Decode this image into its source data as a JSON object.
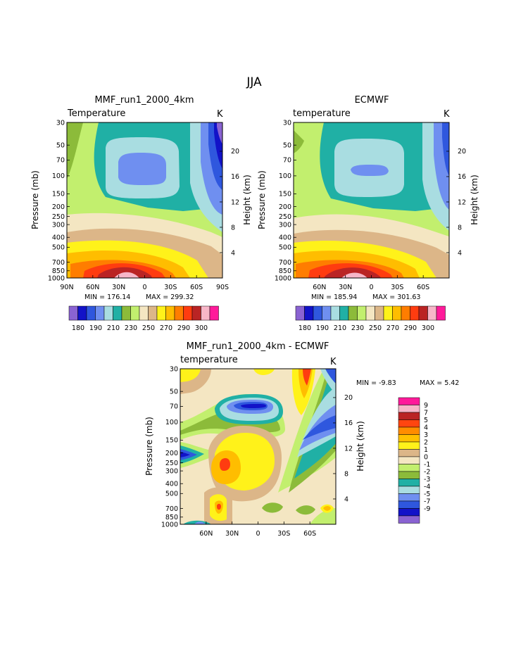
{
  "figure_title": "JJA",
  "panels": [
    {
      "title": "MMF_run1_2000_4km",
      "left_label": "Temperature",
      "unit": "K",
      "min_label": "MIN = 176.14",
      "max_label": "MAX = 299.32",
      "ylabel": "Pressure (mb)",
      "y2label": "Height (km)",
      "xticks": [
        "90N",
        "60N",
        "30N",
        "0",
        "30S",
        "60S",
        "90S"
      ],
      "colorbar_labels": [
        "180",
        "190",
        "210",
        "230",
        "250",
        "270",
        "290",
        "300"
      ]
    },
    {
      "title": "ECMWF",
      "left_label": "temperature",
      "unit": "K",
      "min_label": "MIN = 185.94",
      "max_label": "MAX = 301.63",
      "ylabel": "Pressure (mb)",
      "y2label": "Height (km)",
      "xticks": [
        "60N",
        "30N",
        "0",
        "30S",
        "60S"
      ],
      "colorbar_labels": [
        "180",
        "190",
        "210",
        "230",
        "250",
        "270",
        "290",
        "300"
      ]
    },
    {
      "title": "MMF_run1_2000_4km - ECMWF",
      "left_label": "temperature",
      "unit": "K",
      "min_label": "MIN = -9.83",
      "max_label": "MAX = 5.42",
      "ylabel": "Pressure (mb)",
      "y2label": "Height (km)",
      "xticks": [
        "60N",
        "30N",
        "0",
        "30S",
        "60S"
      ],
      "colorbar_labels": [
        "9",
        "7",
        "5",
        "4",
        "3",
        "2",
        "1",
        "0",
        "-1",
        "-2",
        "-3",
        "-4",
        "-5",
        "-7",
        "-9"
      ]
    }
  ],
  "colors": {
    "abs_scale": [
      "#8a63d2",
      "#1212c8",
      "#2f57de",
      "#6f8ff0",
      "#a9dde1",
      "#20b0a5",
      "#8cbb3a",
      "#c2ef6e",
      "#f4e6c2",
      "#dcb688",
      "#fff21a",
      "#ffbd00",
      "#ff7d00",
      "#ff3c10",
      "#ba2424",
      "#f7b6c8",
      "#ff1a9a"
    ],
    "diff_scale": [
      "#ff1a9a",
      "#f7b6c8",
      "#ba2424",
      "#ff4510",
      "#ff8c00",
      "#ffc000",
      "#fff21a",
      "#dcb688",
      "#f4e6c2",
      "#c2ef6e",
      "#8cbb3a",
      "#20b0a5",
      "#a9dde1",
      "#6f8ff0",
      "#2f57de",
      "#1212c8",
      "#8a63d2"
    ]
  },
  "chart_data": [
    {
      "type": "heatmap",
      "title": "MMF_run1_2000_4km",
      "variable": "Temperature",
      "units": "K",
      "x": "latitude, 90N to 90S",
      "y_pressure_mb": [
        30,
        50,
        70,
        100,
        150,
        200,
        250,
        300,
        400,
        500,
        700,
        850,
        1000
      ],
      "y_height_km": [
        4,
        8,
        12,
        16,
        20
      ],
      "contour_levels": [
        180,
        190,
        210,
        230,
        250,
        270,
        290,
        300
      ],
      "min": 176.14,
      "max": 299.32
    },
    {
      "type": "heatmap",
      "title": "ECMWF",
      "variable": "temperature",
      "units": "K",
      "x": "latitude, 90N to 90S",
      "y_pressure_mb": [
        30,
        50,
        70,
        100,
        150,
        200,
        250,
        300,
        400,
        500,
        700,
        850,
        1000
      ],
      "y_height_km": [
        4,
        8,
        12,
        16,
        20
      ],
      "contour_levels": [
        180,
        190,
        210,
        230,
        250,
        270,
        290,
        300
      ],
      "min": 185.94,
      "max": 301.63
    },
    {
      "type": "heatmap",
      "title": "MMF_run1_2000_4km - ECMWF",
      "variable": "temperature",
      "units": "K",
      "x": "latitude, 90N to 90S",
      "y_pressure_mb": [
        30,
        50,
        70,
        100,
        150,
        200,
        250,
        300,
        400,
        500,
        700,
        850,
        1000
      ],
      "y_height_km": [
        4,
        8,
        12,
        16,
        20
      ],
      "contour_levels": [
        9,
        7,
        5,
        4,
        3,
        2,
        1,
        0,
        -1,
        -2,
        -3,
        -4,
        -5,
        -7,
        -9
      ],
      "min": -9.83,
      "max": 5.42
    }
  ],
  "y_pressure_labels": [
    "30",
    "50",
    "70",
    "100",
    "150",
    "200",
    "250",
    "300",
    "400",
    "500",
    "700",
    "850",
    "1000"
  ],
  "y_height_labels": [
    "4",
    "8",
    "12",
    "16",
    "20"
  ]
}
